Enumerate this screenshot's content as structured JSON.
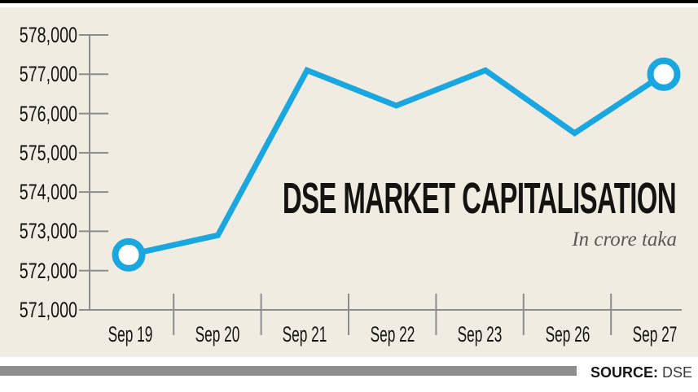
{
  "chart_data": {
    "type": "line",
    "title": "DSE MARKET CAPITALISATION",
    "subtitle": "In crore taka",
    "categories": [
      "Sep 19",
      "Sep 20",
      "Sep 21",
      "Sep 22",
      "Sep 23",
      "Sep 26",
      "Sep 27"
    ],
    "values": [
      572400,
      572900,
      577100,
      576200,
      577100,
      575500,
      577000
    ],
    "y_ticks": [
      578000,
      577000,
      576000,
      575000,
      574000,
      573000,
      572000,
      571000
    ],
    "y_tick_labels": [
      "578,000",
      "577,000",
      "576,000",
      "575,000",
      "574,000",
      "573,000",
      "572,000",
      "571,000"
    ],
    "ylim": [
      571000,
      578000
    ],
    "marker_indices": [
      0,
      6
    ],
    "line_color": "#1aa6de",
    "marker_fill": "#ffffff",
    "axis_color": "#8c8c8c",
    "background_color": "#f0ece2",
    "grid": false,
    "legend": false
  },
  "footer": {
    "source_label": "SOURCE:",
    "source_value": "DSE",
    "bar_color": "#8d8d8d"
  }
}
